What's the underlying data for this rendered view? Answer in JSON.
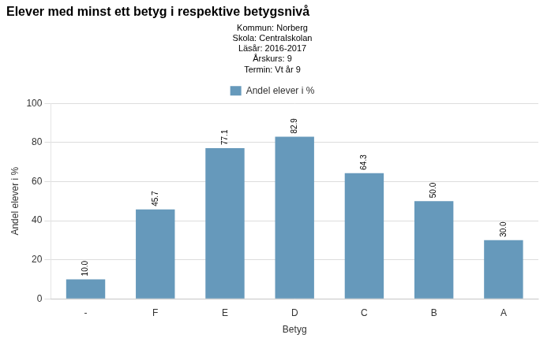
{
  "chart_data": {
    "type": "bar",
    "title": "Elever med minst ett betyg i respektive betygsnivå",
    "subtitle": [
      "Kommun: Norberg",
      "Skola: Centralskolan",
      "Läsår: 2016-2017",
      "Årskurs: 9",
      "Termin: Vt år 9"
    ],
    "categories": [
      "-",
      "F",
      "E",
      "D",
      "C",
      "B",
      "A"
    ],
    "series": [
      {
        "name": "Andel elever i %",
        "color": "#6699BB",
        "values": [
          10.0,
          45.7,
          77.1,
          82.9,
          64.3,
          50.0,
          30.0
        ],
        "value_labels": [
          "10.0",
          "45.7",
          "77.1",
          "82.9",
          "64.3",
          "50.0",
          "30.0"
        ]
      }
    ],
    "xlabel": "Betyg",
    "ylabel": "Andel elever i %",
    "ylim": [
      0,
      100
    ],
    "yticks": [
      0,
      20,
      40,
      60,
      80,
      100
    ],
    "grid": true,
    "legend": "top",
    "data_labels": true
  }
}
